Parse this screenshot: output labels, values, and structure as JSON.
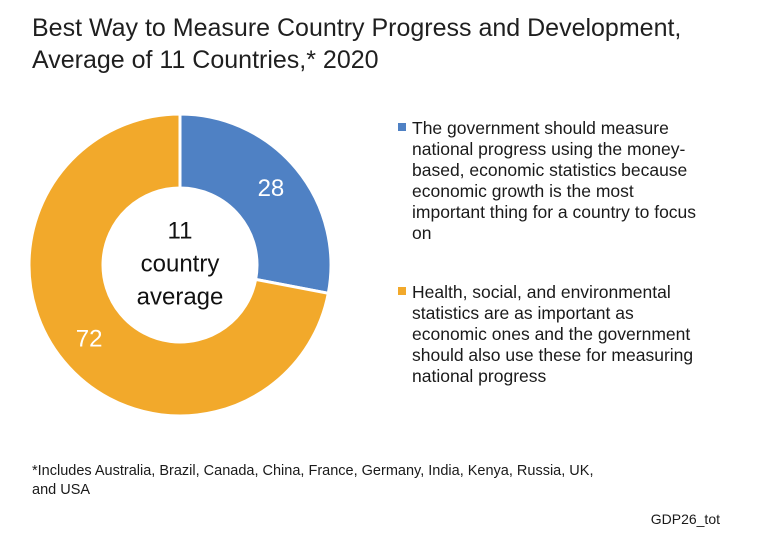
{
  "title_lines": [
    "Best Way to Measure Country Progress and Development,",
    "Average of 11 Countries,* 2020"
  ],
  "center_label_lines": [
    "11",
    "country",
    "average"
  ],
  "chart_data": {
    "type": "pie",
    "title": "Best Way to Measure Country Progress and Development, Average of 11 Countries,* 2020",
    "slices": [
      {
        "label": "The government should measure national progress using the money-based, economic statistics because economic growth is the most important thing for a country to focus on",
        "value": 28,
        "color": "#4f81c4"
      },
      {
        "label": "Health, social, and environmental statistics are as important as economic ones and the government should also use these for measuring national progress",
        "value": 72,
        "color": "#f2a92b"
      }
    ],
    "legend_position": "right"
  },
  "legend": [
    {
      "color": "#4f81c4",
      "lines": [
        "The government should measure",
        "national progress using the money-",
        "based, economic statistics because",
        "economic growth is the most",
        "important thing for a country to focus",
        "on"
      ]
    },
    {
      "color": "#f2a92b",
      "lines": [
        "Health, social, and environmental",
        "statistics are as important as",
        "economic ones and the government",
        "should also use these for measuring",
        "national progress"
      ]
    }
  ],
  "footnote_lines": [
    "*Includes Australia, Brazil, Canada, China, France, Germany, India, Kenya, Russia, UK,",
    "and USA"
  ],
  "source_code": "GDP26_tot"
}
